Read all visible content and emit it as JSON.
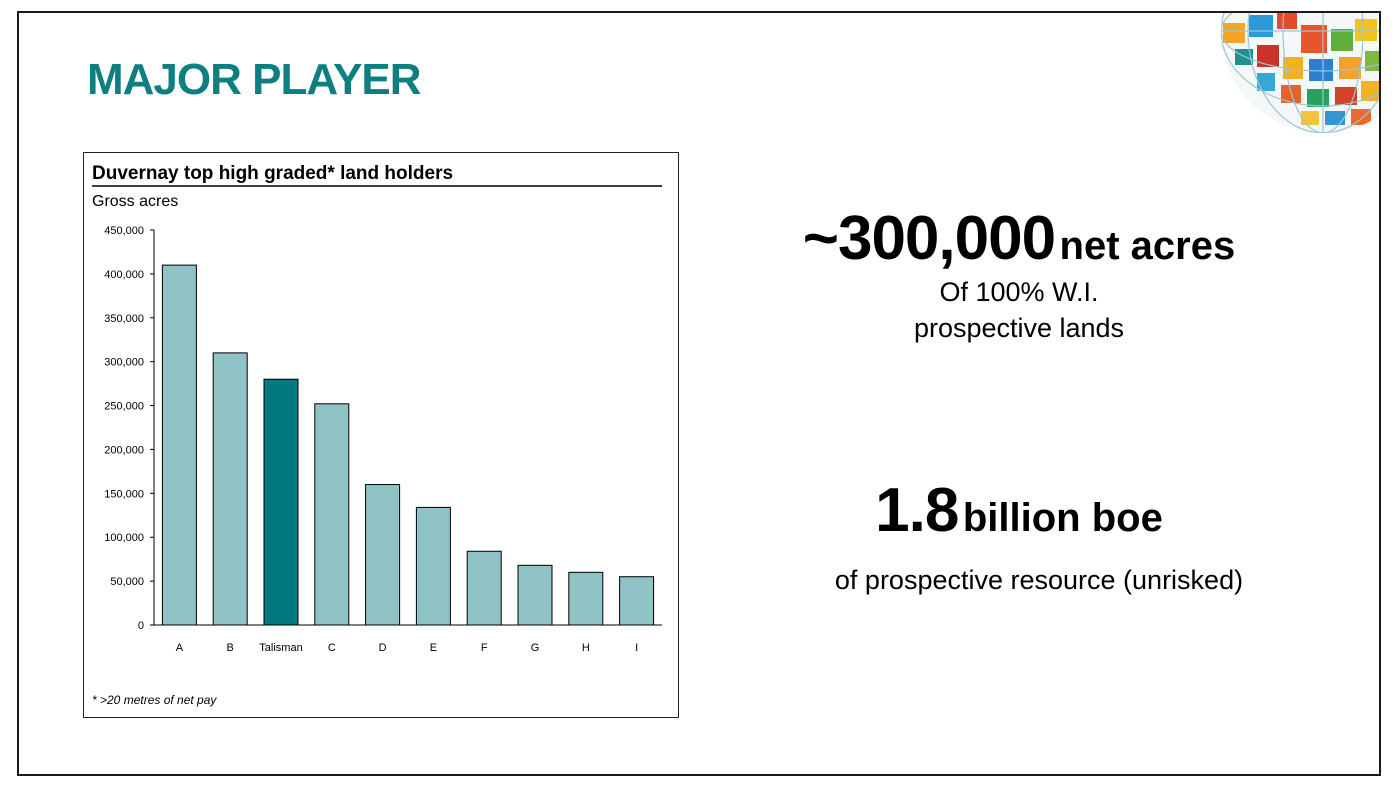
{
  "slide": {
    "title": "MAJOR PLAYER"
  },
  "stats": {
    "primary_value": "~300,000",
    "primary_unit": "net acres",
    "primary_line1": "Of 100% W.I.",
    "primary_line2": "prospective lands",
    "secondary_value": "1.8",
    "secondary_unit": "billion boe",
    "secondary_caption": "of prospective resource (unrisked)"
  },
  "colors": {
    "title": "#0e7f80",
    "bar": "#8fc3c6",
    "highlight_bar": "#007a7e"
  },
  "decoration": {
    "corner_image": "globe-mosaic-logo"
  },
  "chart_data": {
    "type": "bar",
    "title": "Duvernay top high graded* land holders",
    "ylabel": "Gross acres",
    "xlabel": "",
    "footnote": "* >20 metres of net pay",
    "categories": [
      "A",
      "B",
      "Talisman",
      "C",
      "D",
      "E",
      "F",
      "G",
      "H",
      "I"
    ],
    "values": [
      410000,
      310000,
      280000,
      252000,
      160000,
      134000,
      84000,
      68000,
      60000,
      55000
    ],
    "highlight": "Talisman",
    "ylim": [
      0,
      450000
    ],
    "yticks": [
      0,
      50000,
      100000,
      150000,
      200000,
      250000,
      300000,
      350000,
      400000,
      450000
    ],
    "ytick_labels": [
      "0",
      "50,000",
      "100,000",
      "150,000",
      "200,000",
      "250,000",
      "300,000",
      "350,000",
      "400,000",
      "450,000"
    ],
    "grid": false,
    "legend": "none"
  }
}
